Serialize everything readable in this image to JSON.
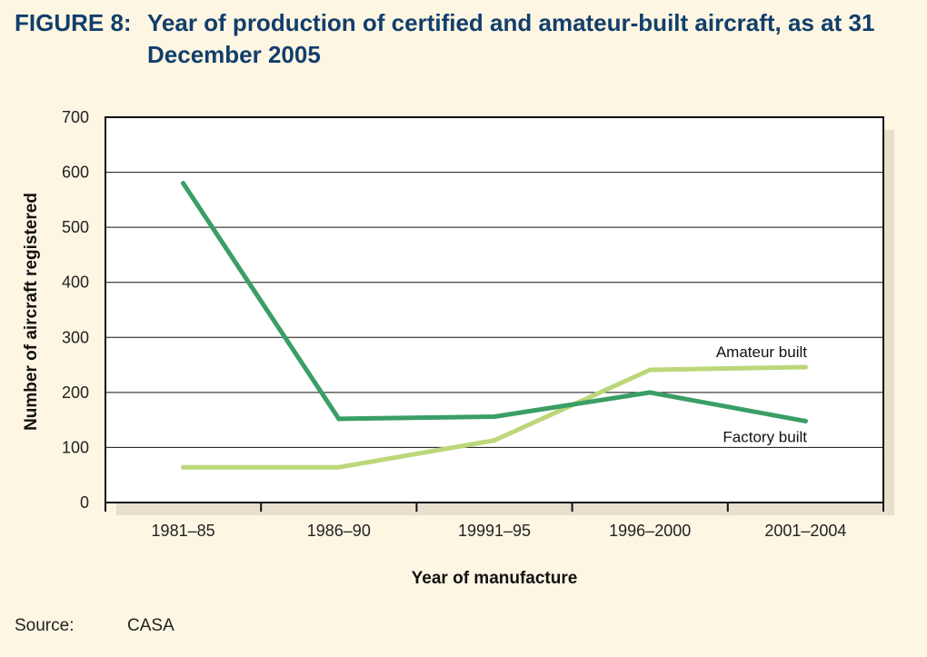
{
  "figure": {
    "number": "FIGURE 8:",
    "title": "Year of production of certified and amateur-built aircraft, as at 31 December 2005"
  },
  "source": {
    "label": "Source:",
    "value": "CASA"
  },
  "chart_data": {
    "type": "line",
    "title": "Year of production of certified and amateur-built aircraft, as at 31 December 2005",
    "xlabel": "Year of manufacture",
    "ylabel": "Number of aircraft registered",
    "categories": [
      "1981–85",
      "1986–90",
      "19991–95",
      "1996–2000",
      "2001–2004"
    ],
    "ylim": [
      0,
      700
    ],
    "yticks": [
      0,
      100,
      200,
      300,
      400,
      500,
      600,
      700
    ],
    "grid": true,
    "series": [
      {
        "name": "Factory built",
        "values": [
          580,
          152,
          156,
          200,
          148
        ],
        "color": "#3a9e66"
      },
      {
        "name": "Amateur built",
        "values": [
          64,
          64,
          113,
          241,
          246
        ],
        "color": "#bcd77a"
      }
    ]
  }
}
